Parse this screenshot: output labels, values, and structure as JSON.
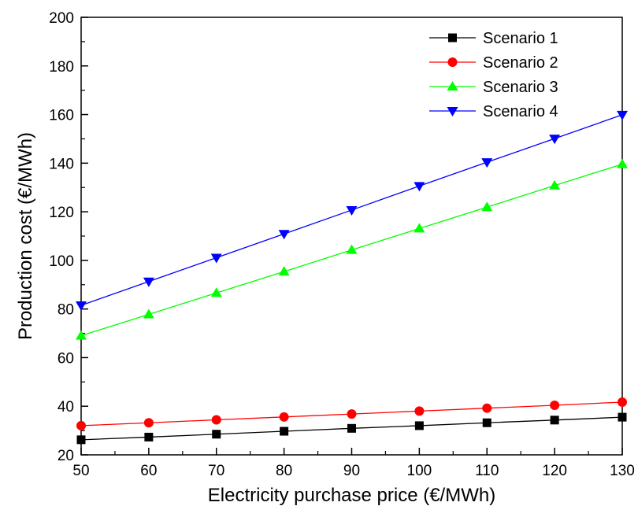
{
  "chart_data": {
    "type": "line",
    "title": "",
    "xlabel": "Electricity purchase price (€/MWh)",
    "ylabel": "Production cost (€/MWh)",
    "xlim": [
      50,
      130
    ],
    "ylim": [
      20,
      200
    ],
    "xticks": [
      50,
      60,
      70,
      80,
      90,
      100,
      110,
      120,
      130
    ],
    "yticks": [
      20,
      40,
      60,
      80,
      100,
      120,
      140,
      160,
      180,
      200
    ],
    "grid": false,
    "legend_position": "top-right",
    "x": [
      50,
      60,
      70,
      80,
      90,
      100,
      110,
      120,
      130
    ],
    "series": [
      {
        "name": "Scenario 1",
        "color": "#000000",
        "marker": "square",
        "values": [
          26.2,
          27.3,
          28.5,
          29.7,
          30.9,
          32.0,
          33.2,
          34.3,
          35.5
        ]
      },
      {
        "name": "Scenario 2",
        "color": "#ff0000",
        "marker": "circle",
        "values": [
          32.0,
          33.2,
          34.4,
          35.6,
          36.8,
          38.0,
          39.2,
          40.4,
          41.7
        ]
      },
      {
        "name": "Scenario 3",
        "color": "#00ff00",
        "marker": "triangle-up",
        "values": [
          69.0,
          77.8,
          86.6,
          95.4,
          104.3,
          113.1,
          121.9,
          130.8,
          139.6
        ]
      },
      {
        "name": "Scenario 4",
        "color": "#0000ff",
        "marker": "triangle-down",
        "values": [
          81.5,
          91.3,
          101.1,
          110.9,
          120.7,
          130.6,
          140.4,
          150.1,
          159.9
        ]
      }
    ]
  }
}
